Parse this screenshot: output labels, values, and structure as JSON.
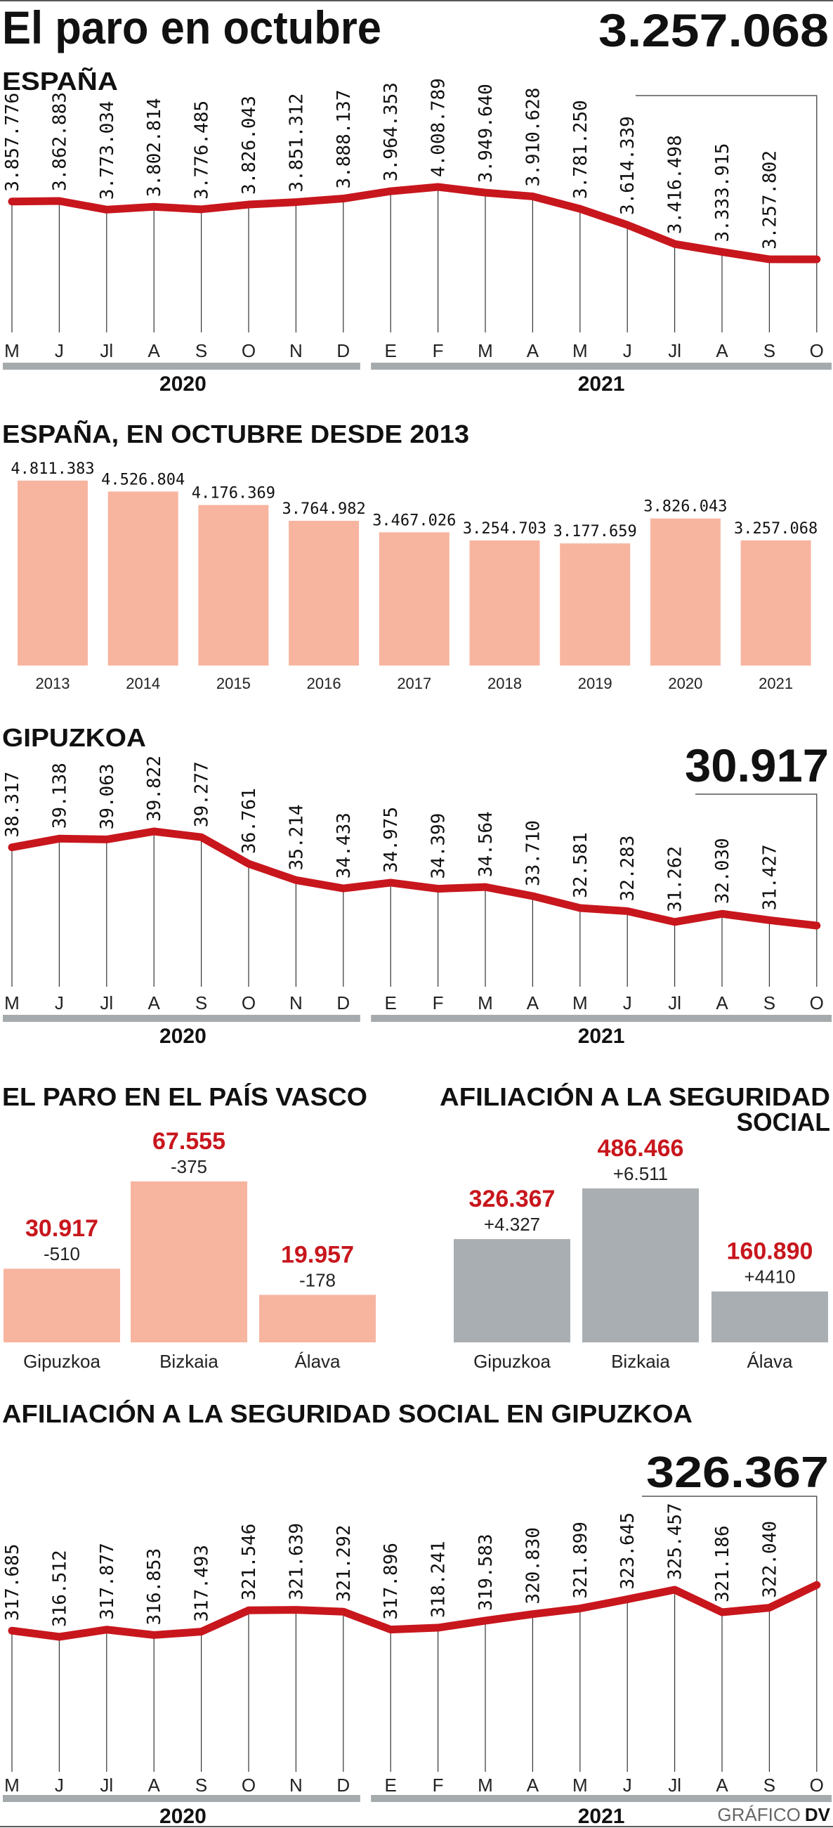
{
  "header": {
    "title": "El paro en octubre"
  },
  "footer": {
    "credit_light": "GRÁFICO",
    "credit_bold": "DV"
  },
  "colors": {
    "line": "#c8161d",
    "bar_paro": "#f7b5a0",
    "bar_afiliacion": "#a8aeb1",
    "year_bar": "#a5aaad",
    "highlight_red": "#c8161d"
  },
  "chart_data": [
    {
      "type": "line",
      "title": "ESPAÑA",
      "highlight": "3.257.068",
      "x": [
        "M",
        "J",
        "Jl",
        "A",
        "S",
        "O",
        "N",
        "D",
        "E",
        "F",
        "M",
        "A",
        "M",
        "J",
        "Jl",
        "A",
        "S",
        "O"
      ],
      "year_groups": [
        {
          "label": "2020",
          "count": 8
        },
        {
          "label": "2021",
          "count": 10
        }
      ],
      "values": [
        3857776,
        3862883,
        3773034,
        3802814,
        3776485,
        3826043,
        3851312,
        3888137,
        3964353,
        4008789,
        3949640,
        3910628,
        3781250,
        3614339,
        3416498,
        3333915,
        3257802,
        3257068
      ],
      "labels": [
        "3.857.776",
        "3.862.883",
        "3.773.034",
        "3.802.814",
        "3.776.485",
        "3.826.043",
        "3.851.312",
        "3.888.137",
        "3.964.353",
        "4.008.789",
        "3.949.640",
        "3.910.628",
        "3.781.250",
        "3.614.339",
        "3.416.498",
        "3.333.915",
        "3.257.802",
        ""
      ]
    },
    {
      "type": "bar",
      "title": "ESPAÑA, EN OCTUBRE DESDE 2013",
      "categories": [
        "2013",
        "2014",
        "2015",
        "2016",
        "2017",
        "2018",
        "2019",
        "2020",
        "2021"
      ],
      "values": [
        4811383,
        4526804,
        4176369,
        3764982,
        3467026,
        3254703,
        3177659,
        3826043,
        3257068
      ],
      "labels": [
        "4.811.383",
        "4.526.804",
        "4.176.369",
        "3.764.982",
        "3.467.026",
        "3.254.703",
        "3.177.659",
        "3.826.043",
        "3.257.068"
      ]
    },
    {
      "type": "line",
      "title": "GIPUZKOA",
      "highlight": "30.917",
      "x": [
        "M",
        "J",
        "Jl",
        "A",
        "S",
        "O",
        "N",
        "D",
        "E",
        "F",
        "M",
        "A",
        "M",
        "J",
        "Jl",
        "A",
        "S",
        "O"
      ],
      "year_groups": [
        {
          "label": "2020",
          "count": 8
        },
        {
          "label": "2021",
          "count": 10
        }
      ],
      "values": [
        38317,
        39138,
        39063,
        39822,
        39277,
        36761,
        35214,
        34433,
        34975,
        34399,
        34564,
        33710,
        32581,
        32283,
        31262,
        32030,
        31427,
        30917
      ],
      "labels": [
        "38.317",
        "39.138",
        "39.063",
        "39.822",
        "39.277",
        "36.761",
        "35.214",
        "34.433",
        "34.975",
        "34.399",
        "34.564",
        "33.710",
        "32.581",
        "32.283",
        "31.262",
        "32.030",
        "31.427",
        ""
      ]
    },
    {
      "type": "bar",
      "title_lines": [
        "EL PARO EN EL PAÍS VASCO"
      ],
      "categories": [
        "Gipuzkoa",
        "Bizkaia",
        "Álava"
      ],
      "values": [
        30917,
        67555,
        19957
      ],
      "labels": [
        "30.917",
        "67.555",
        "19.957"
      ],
      "changes": [
        "-510",
        "-375",
        "-178"
      ]
    },
    {
      "type": "bar",
      "title_lines": [
        "AFILIACIÓN A LA SEGURIDAD",
        "SOCIAL"
      ],
      "categories": [
        "Gipuzkoa",
        "Bizkaia",
        "Álava"
      ],
      "values": [
        326367,
        486466,
        160890
      ],
      "labels": [
        "326.367",
        "486.466",
        "160.890"
      ],
      "changes": [
        "+4.327",
        "+6.511",
        "+4410"
      ]
    },
    {
      "type": "line",
      "title": "AFILIACIÓN A LA SEGURIDAD SOCIAL EN GIPUZKOA",
      "highlight": "326.367",
      "x": [
        "M",
        "J",
        "Jl",
        "A",
        "S",
        "O",
        "N",
        "D",
        "E",
        "F",
        "M",
        "A",
        "M",
        "J",
        "Jl",
        "A",
        "S",
        "O"
      ],
      "year_groups": [
        {
          "label": "2020",
          "count": 8
        },
        {
          "label": "2021",
          "count": 10
        }
      ],
      "values": [
        317685,
        316512,
        317877,
        316853,
        317493,
        321546,
        321639,
        321292,
        317896,
        318241,
        319583,
        320830,
        321899,
        323645,
        325457,
        321186,
        322040,
        326367
      ],
      "labels": [
        "317.685",
        "316.512",
        "317.877",
        "316.853",
        "317.493",
        "321.546",
        "321.639",
        "321.292",
        "317.896",
        "318.241",
        "319.583",
        "320.830",
        "321.899",
        "323.645",
        "325.457",
        "321.186",
        "322.040",
        ""
      ]
    }
  ]
}
